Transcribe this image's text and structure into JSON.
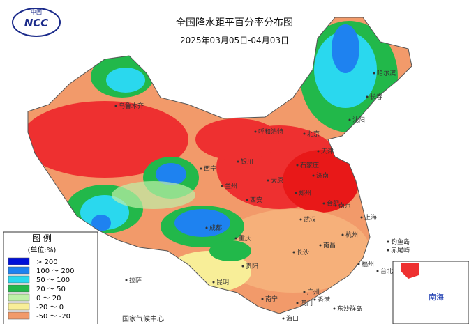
{
  "header": {
    "title": "全国降水距平百分率分布图",
    "subtitle": "2025年03月05日-04月03日",
    "logo": {
      "top": "中国",
      "name": "NCC"
    }
  },
  "legend": {
    "title": "图 例",
    "unit": "(单位:%)",
    "items": [
      {
        "label": "> 200",
        "color": "#0010d8"
      },
      {
        "label": "100 ～ 200",
        "color": "#1e82f0"
      },
      {
        "label": "50 ～ 100",
        "color": "#2ad8ee"
      },
      {
        "label": "20 ～ 50",
        "color": "#22b84a"
      },
      {
        "label": "0 ～ 20",
        "color": "#bff0a8"
      },
      {
        "label": "-20 ～ 0",
        "color": "#f8ee98"
      },
      {
        "label": "-50 ～ -20",
        "color": "#f29a6a"
      }
    ]
  },
  "cities": [
    "乌鲁木齐",
    "拉萨",
    "西宁",
    "兰州",
    "银川",
    "呼和浩特",
    "北京",
    "天津",
    "石家庄",
    "太原",
    "济南",
    "郑州",
    "西安",
    "成都",
    "重庆",
    "武汉",
    "合肥",
    "南京",
    "上海",
    "杭州",
    "长沙",
    "南昌",
    "福州",
    "台北",
    "贵阳",
    "昆明",
    "南宁",
    "广州",
    "香港",
    "澳门",
    "海口",
    "哈尔滨",
    "长春",
    "沈阳",
    "东沙群岛",
    "钓鱼岛",
    "赤尾屿"
  ],
  "footer": {
    "credit": "国家气候中心"
  },
  "inset": {
    "label": "南海"
  }
}
